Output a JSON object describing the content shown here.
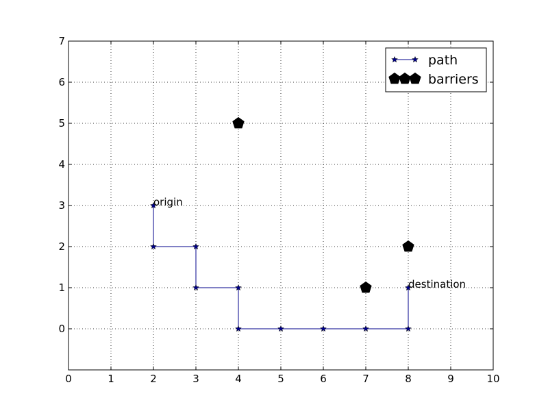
{
  "chart_data": {
    "type": "line",
    "title": "",
    "xlabel": "",
    "ylabel": "",
    "xlim": [
      0,
      10
    ],
    "ylim": [
      -1,
      7
    ],
    "x_ticks": [
      0,
      1,
      2,
      3,
      4,
      5,
      6,
      7,
      8,
      9,
      10
    ],
    "y_ticks": [
      0,
      1,
      2,
      3,
      4,
      5,
      6,
      7
    ],
    "grid": true,
    "legend_position": "top-right",
    "series": [
      {
        "name": "path",
        "type": "line",
        "color": "#00008b",
        "marker": "star",
        "points": [
          [
            2,
            3
          ],
          [
            2,
            2
          ],
          [
            3,
            2
          ],
          [
            3,
            1
          ],
          [
            4,
            1
          ],
          [
            4,
            0
          ],
          [
            5,
            0
          ],
          [
            6,
            0
          ],
          [
            7,
            0
          ],
          [
            8,
            0
          ],
          [
            8,
            1
          ]
        ]
      },
      {
        "name": "barriers",
        "type": "scatter",
        "color": "#000000",
        "marker": "pentagon",
        "points": [
          [
            4,
            5
          ],
          [
            7,
            1
          ],
          [
            8,
            2
          ]
        ]
      }
    ],
    "annotations": [
      {
        "text": "origin",
        "x": 2,
        "y": 3
      },
      {
        "text": "destination",
        "x": 8,
        "y": 1
      }
    ]
  }
}
